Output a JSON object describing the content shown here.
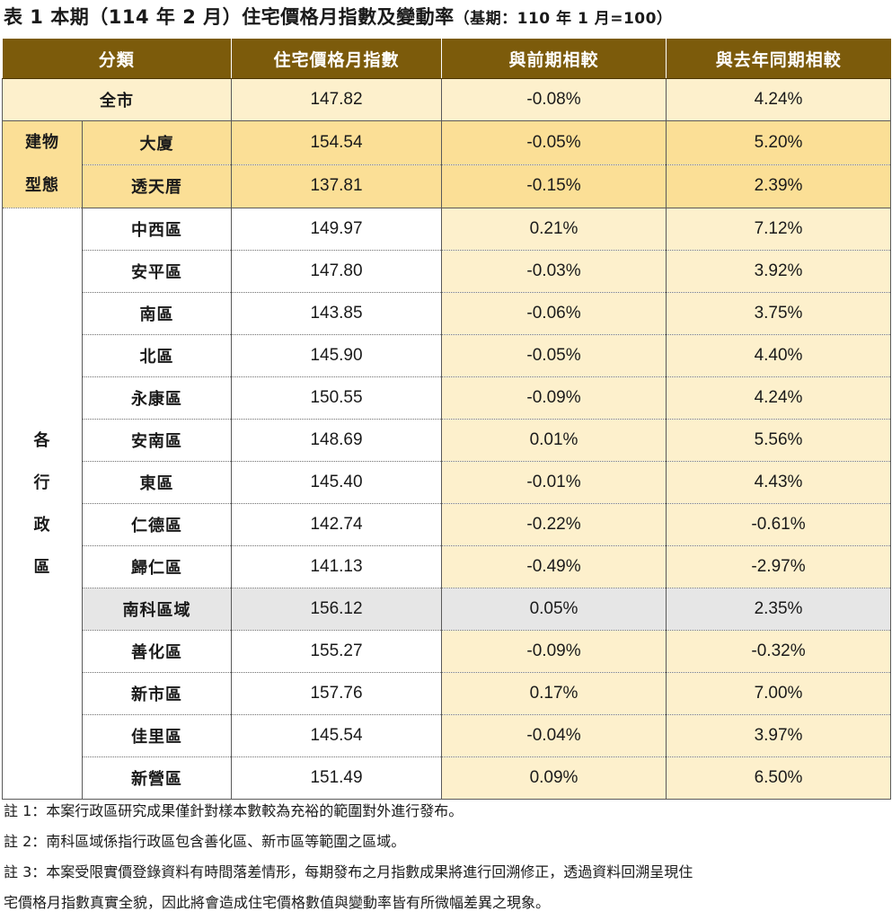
{
  "title": {
    "main": "表 1 本期（114 年 2 月）住宅價格月指數及變動率",
    "sub": "（基期：110 年 1 月=100）"
  },
  "headers": [
    "分類",
    "住宅價格月指數",
    "與前期相較",
    "與去年同期相較"
  ],
  "all_city": {
    "label": "全市",
    "index": "147.82",
    "mom": "-0.08%",
    "yoy": "4.24%"
  },
  "building_group": {
    "label_lines": [
      "建物",
      "型態"
    ],
    "rows": [
      {
        "label": "大廈",
        "index": "154.54",
        "mom": "-0.05%",
        "yoy": "5.20%"
      },
      {
        "label": "透天厝",
        "index": "137.81",
        "mom": "-0.15%",
        "yoy": "2.39%"
      }
    ]
  },
  "district_group": {
    "label_lines": [
      "各",
      "行",
      "政",
      "區"
    ],
    "rows": [
      {
        "label": "中西區",
        "index": "149.97",
        "mom": "0.21%",
        "yoy": "7.12%"
      },
      {
        "label": "安平區",
        "index": "147.80",
        "mom": "-0.03%",
        "yoy": "3.92%"
      },
      {
        "label": "南區",
        "index": "143.85",
        "mom": "-0.06%",
        "yoy": "3.75%"
      },
      {
        "label": "北區",
        "index": "145.90",
        "mom": "-0.05%",
        "yoy": "4.40%"
      },
      {
        "label": "永康區",
        "index": "150.55",
        "mom": "-0.09%",
        "yoy": "4.24%"
      },
      {
        "label": "安南區",
        "index": "148.69",
        "mom": "0.01%",
        "yoy": "5.56%"
      },
      {
        "label": "東區",
        "index": "145.40",
        "mom": "-0.01%",
        "yoy": "4.43%"
      },
      {
        "label": "仁德區",
        "index": "142.74",
        "mom": "-0.22%",
        "yoy": "-0.61%"
      },
      {
        "label": "歸仁區",
        "index": "141.13",
        "mom": "-0.49%",
        "yoy": "-2.97%"
      },
      {
        "label": "南科區域",
        "index": "156.12",
        "mom": "0.05%",
        "yoy": "2.35%",
        "highlight": true
      },
      {
        "label": "善化區",
        "index": "155.27",
        "mom": "-0.09%",
        "yoy": "-0.32%"
      },
      {
        "label": "新市區",
        "index": "157.76",
        "mom": "0.17%",
        "yoy": "7.00%"
      },
      {
        "label": "佳里區",
        "index": "145.54",
        "mom": "-0.04%",
        "yoy": "3.97%"
      },
      {
        "label": "新營區",
        "index": "151.49",
        "mom": "0.09%",
        "yoy": "6.50%"
      }
    ]
  },
  "notes": [
    "註 1：本案行政區研究成果僅針對樣本數較為充裕的範圍對外進行發布。",
    "註 2：南科區域係指行政區包含善化區、新市區等範圍之區域。",
    "註 3：本案受限實價登錄資料有時間落差情形，每期發布之月指數成果將進行回溯修正，透過資料回溯呈現住",
    "宅價格月指數真實全貌，因此將會造成住宅價格數值與變動率皆有所微幅差異之現象。"
  ],
  "colors": {
    "header_bg": "#7c5b0b",
    "all_city_bg": "#fdf0cc",
    "building_bg": "#fbdf96",
    "district_value_bg": "#fdf0cc",
    "highlight_bg": "#e6e6e6"
  }
}
